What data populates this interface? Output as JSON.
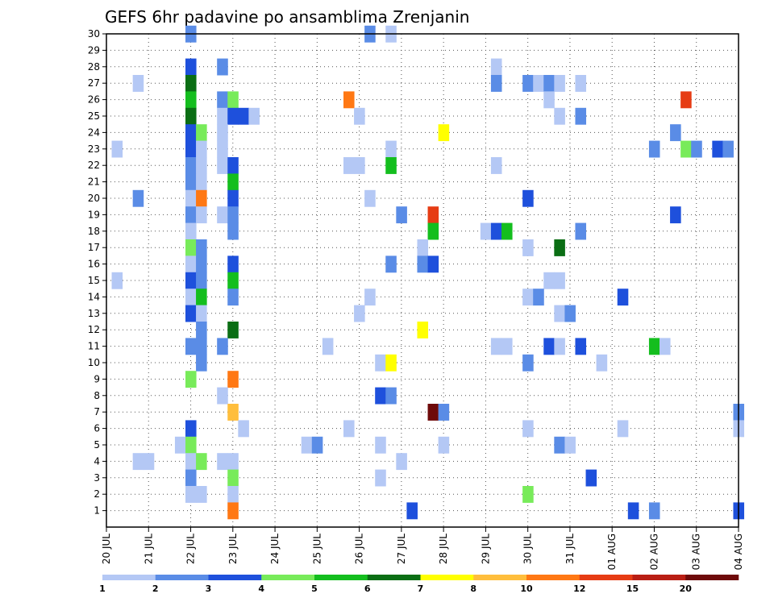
{
  "chart_data": {
    "type": "heatmap",
    "title": "GEFS 6hr padavine po ansamblima Zrenjanin",
    "xlabel": "",
    "ylabel": "",
    "x_tick_labels": [
      "20 JUL",
      "21 JUL",
      "22 JUL",
      "23 JUL",
      "24 JUL",
      "25 JUL",
      "26 JUL",
      "27 JUL",
      "28 JUL",
      "29 JUL",
      "30 JUL",
      "31 JUL",
      "01 AUG",
      "02 AUG",
      "03 AUG",
      "04 AUG"
    ],
    "y_tick_labels": [
      "1",
      "2",
      "3",
      "4",
      "5",
      "6",
      "7",
      "8",
      "9",
      "10",
      "11",
      "12",
      "13",
      "14",
      "15",
      "16",
      "17",
      "18",
      "19",
      "20",
      "21",
      "22",
      "23",
      "24",
      "25",
      "26",
      "27",
      "28",
      "29",
      "30"
    ],
    "grid": true,
    "legend": "bottom",
    "colorbar": {
      "labels": [
        "1",
        "2",
        "3",
        "4",
        "5",
        "6",
        "7",
        "8",
        "10",
        "12",
        "15",
        "20"
      ],
      "colors": [
        "#b4c8f5",
        "#5a8ce6",
        "#1e50dc",
        "#78eb5a",
        "#14be1e",
        "#0a6e14",
        "#ffff00",
        "#ffbe3c",
        "#ff7814",
        "#e63c14",
        "#b91e14",
        "#6e0a0a"
      ]
    },
    "cell_encoding": "cells: [day_index (0=20 JUL, 0.25 = 6h step), member (0=bottom row), color_index]",
    "cells": [
      [
        2,
        30,
        1
      ],
      [
        6.25,
        30,
        1
      ],
      [
        6.75,
        30,
        0
      ],
      [
        2,
        28,
        2
      ],
      [
        2.75,
        28,
        1
      ],
      [
        9.25,
        28,
        0
      ],
      [
        0.75,
        27,
        0
      ],
      [
        2,
        27,
        5
      ],
      [
        9.25,
        27,
        1
      ],
      [
        10,
        27,
        1
      ],
      [
        10.25,
        27,
        0
      ],
      [
        10.5,
        27,
        1
      ],
      [
        10.75,
        27,
        0
      ],
      [
        11.25,
        27,
        0
      ],
      [
        2,
        26,
        4
      ],
      [
        2.75,
        26,
        1
      ],
      [
        3,
        26,
        3
      ],
      [
        5.75,
        26,
        8
      ],
      [
        10.5,
        26,
        0
      ],
      [
        13.75,
        26,
        9
      ],
      [
        2,
        25,
        5
      ],
      [
        2.75,
        25,
        0
      ],
      [
        3,
        25,
        2
      ],
      [
        3.25,
        25,
        2
      ],
      [
        3.5,
        25,
        0
      ],
      [
        6,
        25,
        0
      ],
      [
        10.75,
        25,
        0
      ],
      [
        11.25,
        25,
        1
      ],
      [
        2,
        24,
        2
      ],
      [
        2.25,
        24,
        3
      ],
      [
        2.75,
        24,
        0
      ],
      [
        8,
        24,
        6
      ],
      [
        13.5,
        24,
        1
      ],
      [
        0.25,
        23,
        0
      ],
      [
        2,
        23,
        2
      ],
      [
        2.25,
        23,
        0
      ],
      [
        2.75,
        23,
        0
      ],
      [
        6.75,
        23,
        0
      ],
      [
        13,
        23,
        1
      ],
      [
        13.75,
        23,
        3
      ],
      [
        14,
        23,
        1
      ],
      [
        14.5,
        23,
        2
      ],
      [
        14.75,
        23,
        1
      ],
      [
        2,
        22,
        1
      ],
      [
        2.25,
        22,
        0
      ],
      [
        2.75,
        22,
        0
      ],
      [
        3,
        22,
        2
      ],
      [
        5.75,
        22,
        0
      ],
      [
        6,
        22,
        0
      ],
      [
        6.75,
        22,
        4
      ],
      [
        9.25,
        22,
        0
      ],
      [
        2,
        21,
        1
      ],
      [
        2.25,
        21,
        0
      ],
      [
        3,
        21,
        4
      ],
      [
        0.75,
        20,
        1
      ],
      [
        2,
        20,
        0
      ],
      [
        2.25,
        20,
        8
      ],
      [
        3,
        20,
        2
      ],
      [
        6.25,
        20,
        0
      ],
      [
        10,
        20,
        2
      ],
      [
        2,
        19,
        1
      ],
      [
        2.25,
        19,
        0
      ],
      [
        2.75,
        19,
        0
      ],
      [
        3,
        19,
        1
      ],
      [
        7,
        19,
        1
      ],
      [
        7.75,
        19,
        9
      ],
      [
        13.5,
        19,
        2
      ],
      [
        2,
        18,
        0
      ],
      [
        3,
        18,
        1
      ],
      [
        7.75,
        18,
        4
      ],
      [
        9,
        18,
        0
      ],
      [
        9.25,
        18,
        2
      ],
      [
        9.5,
        18,
        4
      ],
      [
        11.25,
        18,
        1
      ],
      [
        2,
        17,
        3
      ],
      [
        2.25,
        17,
        1
      ],
      [
        7.5,
        17,
        0
      ],
      [
        10,
        17,
        0
      ],
      [
        10.75,
        17,
        5
      ],
      [
        2,
        16,
        0
      ],
      [
        2.25,
        16,
        1
      ],
      [
        3,
        16,
        2
      ],
      [
        6.75,
        16,
        1
      ],
      [
        7.5,
        16,
        1
      ],
      [
        7.75,
        16,
        2
      ],
      [
        0.25,
        15,
        0
      ],
      [
        2,
        15,
        2
      ],
      [
        2.25,
        15,
        1
      ],
      [
        3,
        15,
        4
      ],
      [
        10.5,
        15,
        0
      ],
      [
        10.75,
        15,
        0
      ],
      [
        2,
        14,
        0
      ],
      [
        2.25,
        14,
        4
      ],
      [
        3,
        14,
        1
      ],
      [
        6.25,
        14,
        0
      ],
      [
        10,
        14,
        0
      ],
      [
        10.25,
        14,
        1
      ],
      [
        12.25,
        14,
        2
      ],
      [
        2,
        13,
        2
      ],
      [
        2.25,
        13,
        0
      ],
      [
        6,
        13,
        0
      ],
      [
        10.75,
        13,
        0
      ],
      [
        11,
        13,
        1
      ],
      [
        2.25,
        12,
        1
      ],
      [
        3,
        12,
        5
      ],
      [
        7.5,
        12,
        6
      ],
      [
        2,
        11,
        1
      ],
      [
        2.25,
        11,
        1
      ],
      [
        2.75,
        11,
        1
      ],
      [
        5.25,
        11,
        0
      ],
      [
        9.25,
        11,
        0
      ],
      [
        9.5,
        11,
        0
      ],
      [
        10.5,
        11,
        2
      ],
      [
        10.75,
        11,
        0
      ],
      [
        11.25,
        11,
        2
      ],
      [
        13,
        11,
        4
      ],
      [
        13.25,
        11,
        0
      ],
      [
        2.25,
        10,
        1
      ],
      [
        6.5,
        10,
        0
      ],
      [
        6.75,
        10,
        6
      ],
      [
        10,
        10,
        1
      ],
      [
        11.75,
        10,
        0
      ],
      [
        2,
        9,
        3
      ],
      [
        3,
        9,
        8
      ],
      [
        2.75,
        8,
        0
      ],
      [
        6.5,
        8,
        2
      ],
      [
        6.75,
        8,
        1
      ],
      [
        3,
        7,
        7
      ],
      [
        7.75,
        7,
        11
      ],
      [
        8,
        7,
        1
      ],
      [
        15,
        7,
        1
      ],
      [
        2,
        6,
        2
      ],
      [
        3.25,
        6,
        0
      ],
      [
        5.75,
        6,
        0
      ],
      [
        10,
        6,
        0
      ],
      [
        12.25,
        6,
        0
      ],
      [
        15,
        6,
        0
      ],
      [
        1.75,
        5,
        0
      ],
      [
        2,
        5,
        3
      ],
      [
        4.75,
        5,
        0
      ],
      [
        5,
        5,
        1
      ],
      [
        6.5,
        5,
        0
      ],
      [
        8,
        5,
        0
      ],
      [
        10.75,
        5,
        1
      ],
      [
        11,
        5,
        0
      ],
      [
        0.75,
        4,
        0
      ],
      [
        1,
        4,
        0
      ],
      [
        2,
        4,
        0
      ],
      [
        2.25,
        4,
        3
      ],
      [
        2.75,
        4,
        0
      ],
      [
        3,
        4,
        0
      ],
      [
        7,
        4,
        0
      ],
      [
        2,
        3,
        1
      ],
      [
        3,
        3,
        3
      ],
      [
        6.5,
        3,
        0
      ],
      [
        11.5,
        3,
        2
      ],
      [
        2,
        2,
        0
      ],
      [
        2.25,
        2,
        0
      ],
      [
        3,
        2,
        0
      ],
      [
        10,
        2,
        3
      ],
      [
        3,
        1,
        8
      ],
      [
        7.25,
        1,
        2
      ],
      [
        12.5,
        1,
        2
      ],
      [
        13,
        1,
        1
      ],
      [
        15,
        1,
        2
      ]
    ]
  }
}
